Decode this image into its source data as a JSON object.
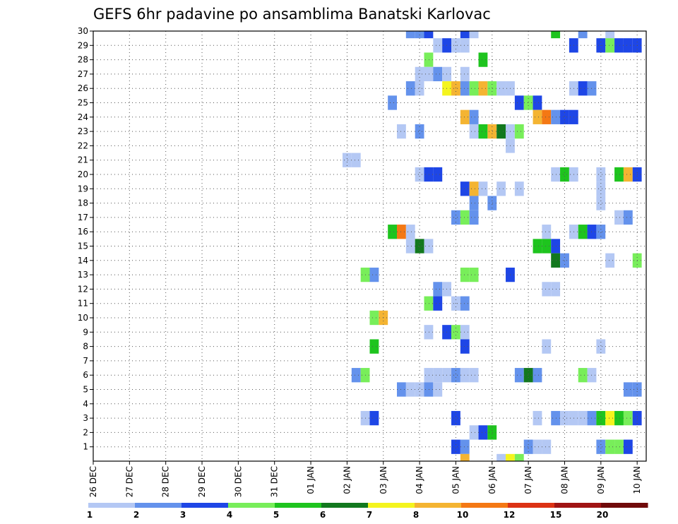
{
  "chart_data": {
    "type": "heatmap",
    "title": "GEFS 6hr padavine po ansamblima Banatski Karlovac",
    "x_tick_labels": [
      "26 DEC",
      "27 DEC",
      "28 DEC",
      "29 DEC",
      "30 DEC",
      "31 DEC",
      "01 JAN",
      "02 JAN",
      "03 JAN",
      "04 JAN",
      "05 JAN",
      "06 JAN",
      "07 JAN",
      "08 JAN",
      "09 JAN",
      "10 JAN"
    ],
    "x_range_days": [
      0,
      15.25
    ],
    "y_tick_labels": [
      "1",
      "2",
      "3",
      "4",
      "5",
      "6",
      "7",
      "8",
      "9",
      "10",
      "11",
      "12",
      "13",
      "14",
      "15",
      "16",
      "17",
      "18",
      "19",
      "20",
      "21",
      "22",
      "23",
      "24",
      "25",
      "26",
      "27",
      "28",
      "29",
      "30"
    ],
    "y_range": [
      0,
      30
    ],
    "grid": true,
    "legend": {
      "placement": "bottom",
      "colors": [
        "#b4c8f4",
        "#6492ec",
        "#1e46e6",
        "#78ee5a",
        "#1ec41e",
        "#12781e",
        "#f4f41e",
        "#f4b432",
        "#f47814",
        "#dc3214",
        "#a01414",
        "#700a0a"
      ],
      "labels": [
        "1",
        "2",
        "3",
        "4",
        "5",
        "6",
        "7",
        "8",
        "10",
        "12",
        "15",
        "20"
      ]
    },
    "cells": [
      {
        "x": 8.75,
        "y": 30,
        "c": 2
      },
      {
        "x": 9,
        "y": 30,
        "c": 2
      },
      {
        "x": 9.25,
        "y": 30,
        "c": 3
      },
      {
        "x": 10.25,
        "y": 30,
        "c": 3
      },
      {
        "x": 10.5,
        "y": 30,
        "c": 1
      },
      {
        "x": 12.75,
        "y": 30,
        "c": 5
      },
      {
        "x": 13.5,
        "y": 30,
        "c": 2
      },
      {
        "x": 14.25,
        "y": 30,
        "c": 1
      },
      {
        "x": 9.5,
        "y": 29,
        "c": 1
      },
      {
        "x": 9.75,
        "y": 29,
        "c": 3
      },
      {
        "x": 10,
        "y": 29,
        "c": 1
      },
      {
        "x": 10.25,
        "y": 29,
        "c": 1
      },
      {
        "x": 13.25,
        "y": 29,
        "c": 3
      },
      {
        "x": 14,
        "y": 29,
        "c": 3
      },
      {
        "x": 14.25,
        "y": 29,
        "c": 4
      },
      {
        "x": 14.5,
        "y": 29,
        "c": 3
      },
      {
        "x": 14.75,
        "y": 29,
        "c": 3
      },
      {
        "x": 15,
        "y": 29,
        "c": 3
      },
      {
        "x": 9.25,
        "y": 28,
        "c": 4
      },
      {
        "x": 10.75,
        "y": 28,
        "c": 5
      },
      {
        "x": 9,
        "y": 27,
        "c": 1
      },
      {
        "x": 9.25,
        "y": 27,
        "c": 1
      },
      {
        "x": 9.5,
        "y": 27,
        "c": 2
      },
      {
        "x": 9.75,
        "y": 27,
        "c": 1
      },
      {
        "x": 10.25,
        "y": 27,
        "c": 1
      },
      {
        "x": 8.75,
        "y": 26,
        "c": 2
      },
      {
        "x": 9,
        "y": 26,
        "c": 1
      },
      {
        "x": 9.75,
        "y": 26,
        "c": 7
      },
      {
        "x": 10,
        "y": 26,
        "c": 8
      },
      {
        "x": 10.25,
        "y": 26,
        "c": 2
      },
      {
        "x": 10.5,
        "y": 26,
        "c": 4
      },
      {
        "x": 10.75,
        "y": 26,
        "c": 8
      },
      {
        "x": 11,
        "y": 26,
        "c": 4
      },
      {
        "x": 11.25,
        "y": 26,
        "c": 1
      },
      {
        "x": 11.5,
        "y": 26,
        "c": 1
      },
      {
        "x": 13.25,
        "y": 26,
        "c": 1
      },
      {
        "x": 13.5,
        "y": 26,
        "c": 3
      },
      {
        "x": 13.75,
        "y": 26,
        "c": 2
      },
      {
        "x": 8.25,
        "y": 25,
        "c": 2
      },
      {
        "x": 11.75,
        "y": 25,
        "c": 3
      },
      {
        "x": 12,
        "y": 25,
        "c": 4
      },
      {
        "x": 12.25,
        "y": 25,
        "c": 3
      },
      {
        "x": 10.25,
        "y": 24,
        "c": 8
      },
      {
        "x": 10.5,
        "y": 24,
        "c": 2
      },
      {
        "x": 12.25,
        "y": 24,
        "c": 8
      },
      {
        "x": 12.5,
        "y": 24,
        "c": 9
      },
      {
        "x": 12.75,
        "y": 24,
        "c": 2
      },
      {
        "x": 13,
        "y": 24,
        "c": 3
      },
      {
        "x": 13.25,
        "y": 24,
        "c": 3
      },
      {
        "x": 8.5,
        "y": 23,
        "c": 1
      },
      {
        "x": 9,
        "y": 23,
        "c": 2
      },
      {
        "x": 10.5,
        "y": 23,
        "c": 1
      },
      {
        "x": 10.75,
        "y": 23,
        "c": 5
      },
      {
        "x": 11,
        "y": 23,
        "c": 8
      },
      {
        "x": 11.25,
        "y": 23,
        "c": 6
      },
      {
        "x": 11.5,
        "y": 23,
        "c": 1
      },
      {
        "x": 11.75,
        "y": 23,
        "c": 4
      },
      {
        "x": 11.5,
        "y": 22,
        "c": 1
      },
      {
        "x": 7,
        "y": 21,
        "c": 1
      },
      {
        "x": 7.25,
        "y": 21,
        "c": 1
      },
      {
        "x": 9,
        "y": 20,
        "c": 1
      },
      {
        "x": 9.25,
        "y": 20,
        "c": 3
      },
      {
        "x": 9.5,
        "y": 20,
        "c": 3
      },
      {
        "x": 12.75,
        "y": 20,
        "c": 1
      },
      {
        "x": 13,
        "y": 20,
        "c": 5
      },
      {
        "x": 13.25,
        "y": 20,
        "c": 1
      },
      {
        "x": 14,
        "y": 20,
        "c": 1
      },
      {
        "x": 14.5,
        "y": 20,
        "c": 5
      },
      {
        "x": 14.75,
        "y": 20,
        "c": 8
      },
      {
        "x": 15,
        "y": 20,
        "c": 3
      },
      {
        "x": 10.25,
        "y": 19,
        "c": 3
      },
      {
        "x": 10.5,
        "y": 19,
        "c": 8
      },
      {
        "x": 10.75,
        "y": 19,
        "c": 1
      },
      {
        "x": 11.25,
        "y": 19,
        "c": 1
      },
      {
        "x": 11.75,
        "y": 19,
        "c": 1
      },
      {
        "x": 14,
        "y": 19,
        "c": 1
      },
      {
        "x": 10.5,
        "y": 18,
        "c": 2
      },
      {
        "x": 11,
        "y": 18,
        "c": 2
      },
      {
        "x": 14,
        "y": 18,
        "c": 1
      },
      {
        "x": 10,
        "y": 17,
        "c": 2
      },
      {
        "x": 10.25,
        "y": 17,
        "c": 4
      },
      {
        "x": 10.5,
        "y": 17,
        "c": 2
      },
      {
        "x": 14.5,
        "y": 17,
        "c": 1
      },
      {
        "x": 14.75,
        "y": 17,
        "c": 2
      },
      {
        "x": 8.25,
        "y": 16,
        "c": 5
      },
      {
        "x": 8.5,
        "y": 16,
        "c": 9
      },
      {
        "x": 8.75,
        "y": 16,
        "c": 1
      },
      {
        "x": 12.5,
        "y": 16,
        "c": 1
      },
      {
        "x": 13.25,
        "y": 16,
        "c": 1
      },
      {
        "x": 13.5,
        "y": 16,
        "c": 5
      },
      {
        "x": 13.75,
        "y": 16,
        "c": 3
      },
      {
        "x": 14,
        "y": 16,
        "c": 2
      },
      {
        "x": 8.75,
        "y": 15,
        "c": 1
      },
      {
        "x": 9,
        "y": 15,
        "c": 6
      },
      {
        "x": 9.25,
        "y": 15,
        "c": 1
      },
      {
        "x": 12.25,
        "y": 15,
        "c": 5
      },
      {
        "x": 12.5,
        "y": 15,
        "c": 5
      },
      {
        "x": 12.75,
        "y": 15,
        "c": 3
      },
      {
        "x": 12.75,
        "y": 14,
        "c": 6
      },
      {
        "x": 13,
        "y": 14,
        "c": 2
      },
      {
        "x": 14.25,
        "y": 14,
        "c": 1
      },
      {
        "x": 15,
        "y": 14,
        "c": 4
      },
      {
        "x": 7.5,
        "y": 13,
        "c": 4
      },
      {
        "x": 7.75,
        "y": 13,
        "c": 2
      },
      {
        "x": 10.25,
        "y": 13,
        "c": 4
      },
      {
        "x": 10.5,
        "y": 13,
        "c": 4
      },
      {
        "x": 11.5,
        "y": 13,
        "c": 3
      },
      {
        "x": 9.5,
        "y": 12,
        "c": 2
      },
      {
        "x": 9.75,
        "y": 12,
        "c": 1
      },
      {
        "x": 12.5,
        "y": 12,
        "c": 1
      },
      {
        "x": 12.75,
        "y": 12,
        "c": 1
      },
      {
        "x": 9.25,
        "y": 11,
        "c": 4
      },
      {
        "x": 9.5,
        "y": 11,
        "c": 3
      },
      {
        "x": 10,
        "y": 11,
        "c": 1
      },
      {
        "x": 10.25,
        "y": 11,
        "c": 2
      },
      {
        "x": 7.75,
        "y": 10,
        "c": 4
      },
      {
        "x": 8,
        "y": 10,
        "c": 8
      },
      {
        "x": 9.25,
        "y": 9,
        "c": 1
      },
      {
        "x": 9.75,
        "y": 9,
        "c": 3
      },
      {
        "x": 10,
        "y": 9,
        "c": 4
      },
      {
        "x": 10.25,
        "y": 9,
        "c": 1
      },
      {
        "x": 7.75,
        "y": 8,
        "c": 5
      },
      {
        "x": 10.25,
        "y": 8,
        "c": 3
      },
      {
        "x": 12.5,
        "y": 8,
        "c": 1
      },
      {
        "x": 14,
        "y": 8,
        "c": 1
      },
      {
        "x": 7.25,
        "y": 6,
        "c": 2
      },
      {
        "x": 7.5,
        "y": 6,
        "c": 4
      },
      {
        "x": 9.25,
        "y": 6,
        "c": 1
      },
      {
        "x": 9.5,
        "y": 6,
        "c": 1
      },
      {
        "x": 9.75,
        "y": 6,
        "c": 1
      },
      {
        "x": 10,
        "y": 6,
        "c": 2
      },
      {
        "x": 10.25,
        "y": 6,
        "c": 1
      },
      {
        "x": 10.5,
        "y": 6,
        "c": 1
      },
      {
        "x": 11.75,
        "y": 6,
        "c": 2
      },
      {
        "x": 12,
        "y": 6,
        "c": 6
      },
      {
        "x": 12.25,
        "y": 6,
        "c": 2
      },
      {
        "x": 13.5,
        "y": 6,
        "c": 4
      },
      {
        "x": 13.75,
        "y": 6,
        "c": 1
      },
      {
        "x": 8.5,
        "y": 5,
        "c": 2
      },
      {
        "x": 8.75,
        "y": 5,
        "c": 1
      },
      {
        "x": 9,
        "y": 5,
        "c": 1
      },
      {
        "x": 9.25,
        "y": 5,
        "c": 2
      },
      {
        "x": 9.5,
        "y": 5,
        "c": 1
      },
      {
        "x": 14.75,
        "y": 5,
        "c": 2
      },
      {
        "x": 15,
        "y": 5,
        "c": 2
      },
      {
        "x": 7.5,
        "y": 3,
        "c": 1
      },
      {
        "x": 7.75,
        "y": 3,
        "c": 3
      },
      {
        "x": 10,
        "y": 3,
        "c": 3
      },
      {
        "x": 12.25,
        "y": 3,
        "c": 1
      },
      {
        "x": 12.75,
        "y": 3,
        "c": 2
      },
      {
        "x": 13,
        "y": 3,
        "c": 1
      },
      {
        "x": 13.25,
        "y": 3,
        "c": 1
      },
      {
        "x": 13.5,
        "y": 3,
        "c": 1
      },
      {
        "x": 13.75,
        "y": 3,
        "c": 2
      },
      {
        "x": 14,
        "y": 3,
        "c": 5
      },
      {
        "x": 14.25,
        "y": 3,
        "c": 7
      },
      {
        "x": 14.5,
        "y": 3,
        "c": 5
      },
      {
        "x": 14.75,
        "y": 3,
        "c": 4
      },
      {
        "x": 15,
        "y": 3,
        "c": 3
      },
      {
        "x": 10.5,
        "y": 2,
        "c": 1
      },
      {
        "x": 10.75,
        "y": 2,
        "c": 3
      },
      {
        "x": 11,
        "y": 2,
        "c": 5
      },
      {
        "x": 10,
        "y": 1,
        "c": 3
      },
      {
        "x": 10.25,
        "y": 1,
        "c": 2
      },
      {
        "x": 12,
        "y": 1,
        "c": 2
      },
      {
        "x": 12.25,
        "y": 1,
        "c": 1
      },
      {
        "x": 12.5,
        "y": 1,
        "c": 1
      },
      {
        "x": 14,
        "y": 1,
        "c": 2
      },
      {
        "x": 14.25,
        "y": 1,
        "c": 4
      },
      {
        "x": 14.5,
        "y": 1,
        "c": 4
      },
      {
        "x": 14.75,
        "y": 1,
        "c": 3
      },
      {
        "x": 10.25,
        "y": 0,
        "c": 8
      },
      {
        "x": 11.25,
        "y": 0,
        "c": 1
      },
      {
        "x": 11.5,
        "y": 0,
        "c": 7
      },
      {
        "x": 11.75,
        "y": 0,
        "c": 4
      }
    ]
  }
}
